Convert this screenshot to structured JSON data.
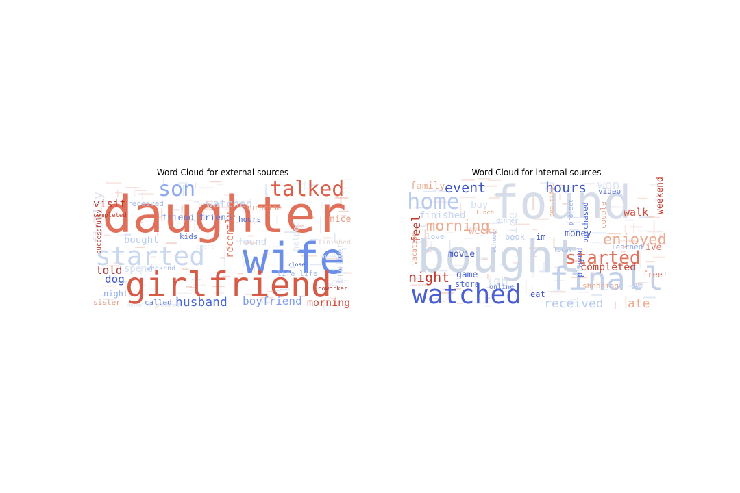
{
  "figure": {
    "external": {
      "title": "Word Cloud for external sources",
      "words": [
        {
          "text": "daughter",
          "color": "#e0705a",
          "big": true
        },
        {
          "text": "wife",
          "color": "#6b8ee8",
          "big": true
        },
        {
          "text": "girlfriend",
          "color": "#d65a45",
          "big": true
        },
        {
          "text": "started",
          "color": "#c9d7ef",
          "big": true
        },
        {
          "text": "son",
          "color": "#8fa9f0"
        },
        {
          "text": "talked",
          "color": "#d95f48"
        },
        {
          "text": "husband",
          "color": "#4a67d6"
        },
        {
          "text": "boyfriend",
          "color": "#7d9bef"
        },
        {
          "text": "morning",
          "color": "#d04d3e"
        },
        {
          "text": "watched",
          "color": "#c6d3ec"
        },
        {
          "text": "visit",
          "color": "#c0392b"
        },
        {
          "text": "told",
          "color": "#b03a3a"
        },
        {
          "text": "dog",
          "color": "#3f57c6"
        },
        {
          "text": "bought",
          "color": "#b8cbee"
        },
        {
          "text": "friend friend",
          "color": "#5a78dc"
        },
        {
          "text": "found",
          "color": "#c7d4ec"
        },
        {
          "text": "recently",
          "color": "#e07a62"
        },
        {
          "text": "finally",
          "color": "#dde3ee"
        },
        {
          "text": "nice",
          "color": "#e59e84"
        },
        {
          "text": "brother",
          "color": "#c9d7ef"
        },
        {
          "text": "weeks",
          "color": "#dfe6f2"
        },
        {
          "text": "received",
          "color": "#a9bde8"
        },
        {
          "text": "kids",
          "color": "#5a78dc"
        },
        {
          "text": "hours",
          "color": "#4a67d6"
        },
        {
          "text": "spend",
          "color": "#d5dff0"
        },
        {
          "text": "weekend",
          "color": "#a9bde8"
        },
        {
          "text": "night",
          "color": "#8fa9f0"
        },
        {
          "text": "called",
          "color": "#5a78dc"
        },
        {
          "text": "sister",
          "color": "#e59e84"
        },
        {
          "text": "life life",
          "color": "#a9bde8"
        },
        {
          "text": "surprise",
          "color": "#e59e84"
        },
        {
          "text": "moment moment",
          "color": "#e0e5ee"
        },
        {
          "text": "completed",
          "color": "#c0392b"
        },
        {
          "text": "helped",
          "color": "#dfe6f2"
        },
        {
          "text": "finished",
          "color": "#e3d6d0"
        },
        {
          "text": "event",
          "color": "#e6e9ef"
        },
        {
          "text": "successfully",
          "color": "#c0392b"
        },
        {
          "text": "close",
          "color": "#3f57c6"
        },
        {
          "text": "coworker",
          "color": "#b03a3a"
        }
      ]
    },
    "internal": {
      "title": "Word Cloud for internal sources",
      "words": [
        {
          "text": "found",
          "color": "#d6dde8",
          "big": true
        },
        {
          "text": "bought",
          "color": "#cfd8e6",
          "big": true
        },
        {
          "text": "finally",
          "color": "#c2d0ea",
          "big": true
        },
        {
          "text": "watched",
          "color": "#4a5fd0",
          "big": true
        },
        {
          "text": "home",
          "color": "#b8cbee"
        },
        {
          "text": "morning",
          "color": "#eba98e"
        },
        {
          "text": "event",
          "color": "#3f57c6"
        },
        {
          "text": "hours",
          "color": "#3f57c6"
        },
        {
          "text": "won",
          "color": "#dfe6f2"
        },
        {
          "text": "started",
          "color": "#e0705a"
        },
        {
          "text": "enjoyed",
          "color": "#eba98e"
        },
        {
          "text": "completed",
          "color": "#c84b3a"
        },
        {
          "text": "received",
          "color": "#b8cbee"
        },
        {
          "text": "ate",
          "color": "#eba98e"
        },
        {
          "text": "night",
          "color": "#c0392b"
        },
        {
          "text": "feel",
          "color": "#c0392b"
        },
        {
          "text": "nice",
          "color": "#dfe6f2"
        },
        {
          "text": "job",
          "color": "#dfe6f2"
        },
        {
          "text": "family",
          "color": "#eba98e"
        },
        {
          "text": "walk",
          "color": "#d04d3e"
        },
        {
          "text": "weekend",
          "color": "#c0392b"
        },
        {
          "text": "finished",
          "color": "#c6d3ec"
        },
        {
          "text": "buy",
          "color": "#d5dff0"
        },
        {
          "text": "weeks",
          "color": "#eba98e"
        },
        {
          "text": "movie",
          "color": "#3f57c6"
        },
        {
          "text": "game",
          "color": "#4a67d6"
        },
        {
          "text": "store",
          "color": "#4a67d6"
        },
        {
          "text": "eat",
          "color": "#3f57c6"
        },
        {
          "text": "im",
          "color": "#3f57c6"
        },
        {
          "text": "money",
          "color": "#3f57c6"
        },
        {
          "text": "book",
          "color": "#b8cbee"
        },
        {
          "text": "played",
          "color": "#4a67d6"
        },
        {
          "text": "purchased",
          "color": "#4a67d6"
        },
        {
          "text": "couple",
          "color": "#e59e84"
        },
        {
          "text": "video",
          "color": "#5a78dc"
        },
        {
          "text": "learned",
          "color": "#8fa9f0"
        },
        {
          "text": "ive",
          "color": "#e07a62"
        },
        {
          "text": "free",
          "color": "#e07a62"
        },
        {
          "text": "shopping",
          "color": "#eba98e"
        },
        {
          "text": "love",
          "color": "#b8cbee"
        },
        {
          "text": "online",
          "color": "#5a78dc"
        },
        {
          "text": "school",
          "color": "#a9bde8"
        },
        {
          "text": "vacation",
          "color": "#e59e84"
        },
        {
          "text": "lunch",
          "color": "#e59e84"
        },
        {
          "text": "dinner",
          "color": "#c6d3ec"
        },
        {
          "text": "beautiful",
          "color": "#eba98e"
        },
        {
          "text": "project",
          "color": "#8fa9f0"
        },
        {
          "text": "local",
          "color": "#a9bde8"
        },
        {
          "text": "gym",
          "color": "#b8cbee"
        }
      ]
    }
  }
}
